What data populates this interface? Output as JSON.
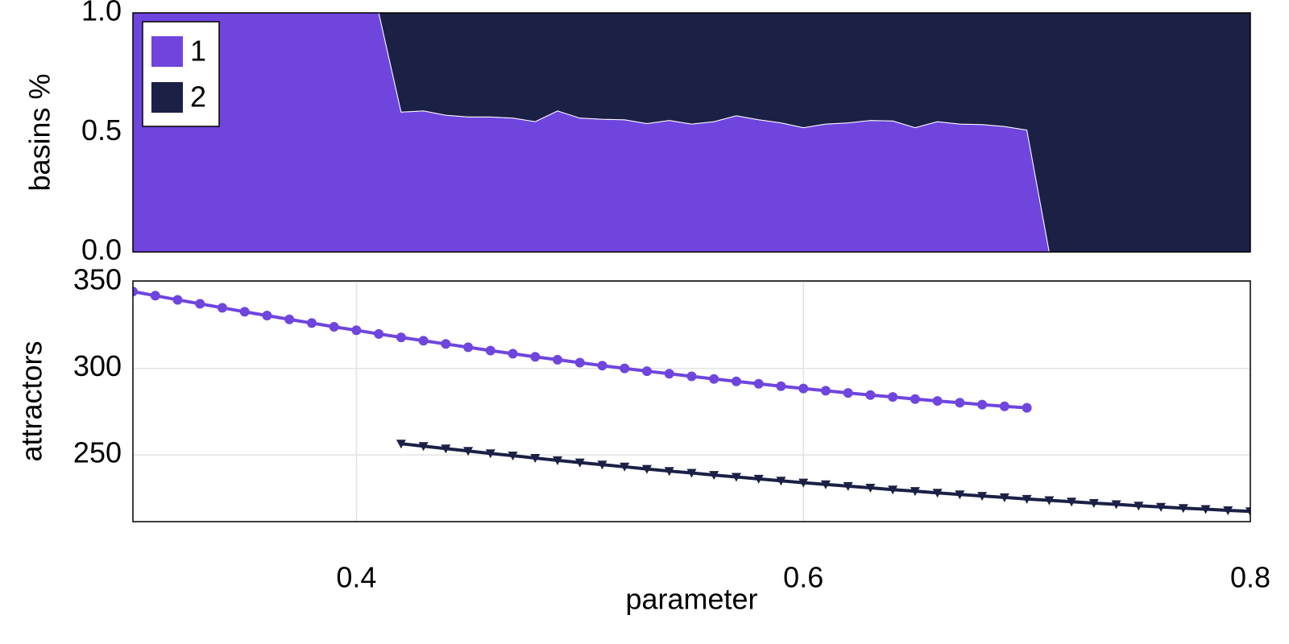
{
  "chart_data": [
    {
      "type": "area",
      "stacked": true,
      "ylabel": "basins %",
      "x": [
        0.3,
        0.31,
        0.32,
        0.33,
        0.34,
        0.35,
        0.36,
        0.37,
        0.38,
        0.39,
        0.4,
        0.41,
        0.42,
        0.43,
        0.44,
        0.45,
        0.46,
        0.47,
        0.48,
        0.49,
        0.5,
        0.51,
        0.52,
        0.53,
        0.54,
        0.55,
        0.56,
        0.57,
        0.58,
        0.59,
        0.6,
        0.61,
        0.62,
        0.63,
        0.64,
        0.65,
        0.66,
        0.67,
        0.68,
        0.69,
        0.7,
        0.71,
        0.72,
        0.73,
        0.74,
        0.75,
        0.76,
        0.77,
        0.78,
        0.79,
        0.8
      ],
      "xlim": [
        0.3,
        0.8
      ],
      "ylim": [
        0,
        1
      ],
      "yticks": [
        {
          "value": 0,
          "label": "0.0"
        },
        {
          "value": 0.5,
          "label": "0.5"
        },
        {
          "value": 1,
          "label": "1.0"
        }
      ],
      "legend": "upper left",
      "series": [
        {
          "name": "1",
          "color": "#6f45de",
          "values": [
            1,
            1,
            1,
            1,
            1,
            1,
            1,
            1,
            1,
            1,
            1,
            1,
            0.585,
            0.59,
            0.572,
            0.565,
            0.565,
            0.56,
            0.545,
            0.59,
            0.56,
            0.555,
            0.553,
            0.537,
            0.55,
            0.535,
            0.545,
            0.57,
            0.553,
            0.54,
            0.52,
            0.535,
            0.54,
            0.55,
            0.548,
            0.52,
            0.545,
            0.535,
            0.533,
            0.525,
            0.51,
            0,
            0,
            0,
            0,
            0,
            0,
            0,
            0,
            0,
            0
          ]
        },
        {
          "name": "2",
          "color": "#1b2045",
          "values": [
            0,
            0,
            0,
            0,
            0,
            0,
            0,
            0,
            0,
            0,
            0,
            0,
            0.415,
            0.41,
            0.428,
            0.435,
            0.435,
            0.44,
            0.455,
            0.41,
            0.44,
            0.445,
            0.447,
            0.463,
            0.45,
            0.465,
            0.455,
            0.43,
            0.447,
            0.46,
            0.48,
            0.465,
            0.46,
            0.45,
            0.452,
            0.48,
            0.455,
            0.465,
            0.467,
            0.475,
            0.49,
            1,
            1,
            1,
            1,
            1,
            1,
            1,
            1,
            1,
            1
          ]
        }
      ]
    },
    {
      "type": "line",
      "ylabel": "attractors",
      "xlabel": "parameter",
      "grid": true,
      "x": [
        0.3,
        0.31,
        0.32,
        0.33,
        0.34,
        0.35,
        0.36,
        0.37,
        0.38,
        0.39,
        0.4,
        0.41,
        0.42,
        0.43,
        0.44,
        0.45,
        0.46,
        0.47,
        0.48,
        0.49,
        0.5,
        0.51,
        0.52,
        0.53,
        0.54,
        0.55,
        0.56,
        0.57,
        0.58,
        0.59,
        0.6,
        0.61,
        0.62,
        0.63,
        0.64,
        0.65,
        0.66,
        0.67,
        0.68,
        0.69,
        0.7,
        0.71,
        0.72,
        0.73,
        0.74,
        0.75,
        0.76,
        0.77,
        0.78,
        0.79,
        0.8
      ],
      "xlim": [
        0.3,
        0.8
      ],
      "ylim": [
        211.5,
        350.5
      ],
      "xticks": [
        0.4,
        0.6,
        0.8
      ],
      "yticks": [
        250,
        300,
        350
      ],
      "series": [
        {
          "color": "#6f45de",
          "marker": "circle",
          "values": [
            344.4,
            342.0,
            339.6,
            337.3,
            335.0,
            332.7,
            330.5,
            328.3,
            326.2,
            324.0,
            322.0,
            319.9,
            317.9,
            316.0,
            314.1,
            312.2,
            310.3,
            308.5,
            306.7,
            305.0,
            303.3,
            301.6,
            300.0,
            298.4,
            296.9,
            295.4,
            293.9,
            292.5,
            291.1,
            289.7,
            288.4,
            287.1,
            285.8,
            284.6,
            283.5,
            282.3,
            281.2,
            280.2,
            279.1,
            278.1,
            277.2,
            null,
            null,
            null,
            null,
            null,
            null,
            null,
            null,
            null,
            null
          ]
        },
        {
          "color": "#1b2045",
          "marker": "triangle-down",
          "values": [
            null,
            null,
            null,
            null,
            null,
            null,
            null,
            null,
            null,
            null,
            null,
            null,
            256.5,
            255.1,
            253.7,
            252.3,
            250.9,
            249.6,
            248.2,
            246.9,
            245.6,
            244.4,
            243.2,
            241.9,
            240.7,
            239.6,
            238.4,
            237.3,
            236.2,
            235.1,
            234.0,
            233.0,
            232.0,
            231.0,
            230.0,
            229.1,
            228.1,
            227.2,
            226.3,
            225.5,
            224.6,
            223.8,
            223.0,
            222.2,
            221.5,
            220.7,
            220.0,
            219.3,
            218.7,
            218.0,
            217.4
          ]
        }
      ]
    }
  ]
}
